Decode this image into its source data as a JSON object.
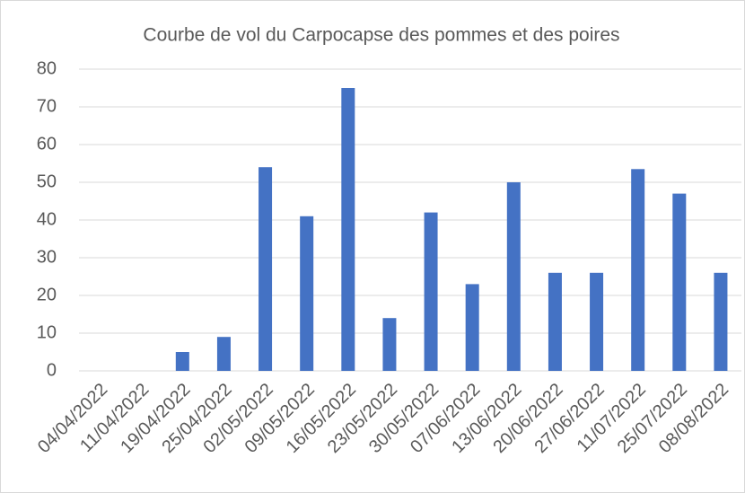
{
  "chart_data": {
    "type": "bar",
    "title": "Courbe de vol du Carpocapse des pommes et des poires",
    "categories": [
      "04/04/2022",
      "11/04/2022",
      "19/04/2022",
      "25/04/2022",
      "02/05/2022",
      "09/05/2022",
      "16/05/2022",
      "23/05/2022",
      "30/05/2022",
      "07/06/2022",
      "13/06/2022",
      "20/06/2022",
      "27/06/2022",
      "11/07/2022",
      "25/07/2022",
      "08/08/2022"
    ],
    "values": [
      0,
      0,
      5,
      9,
      54,
      41,
      75,
      14,
      42,
      23,
      50,
      26,
      26,
      53.5,
      47,
      26
    ],
    "color": "#4472c4",
    "ylim": [
      0,
      80
    ],
    "yticks": [
      0,
      10,
      20,
      30,
      40,
      50,
      60,
      70,
      80
    ],
    "grid": true
  }
}
